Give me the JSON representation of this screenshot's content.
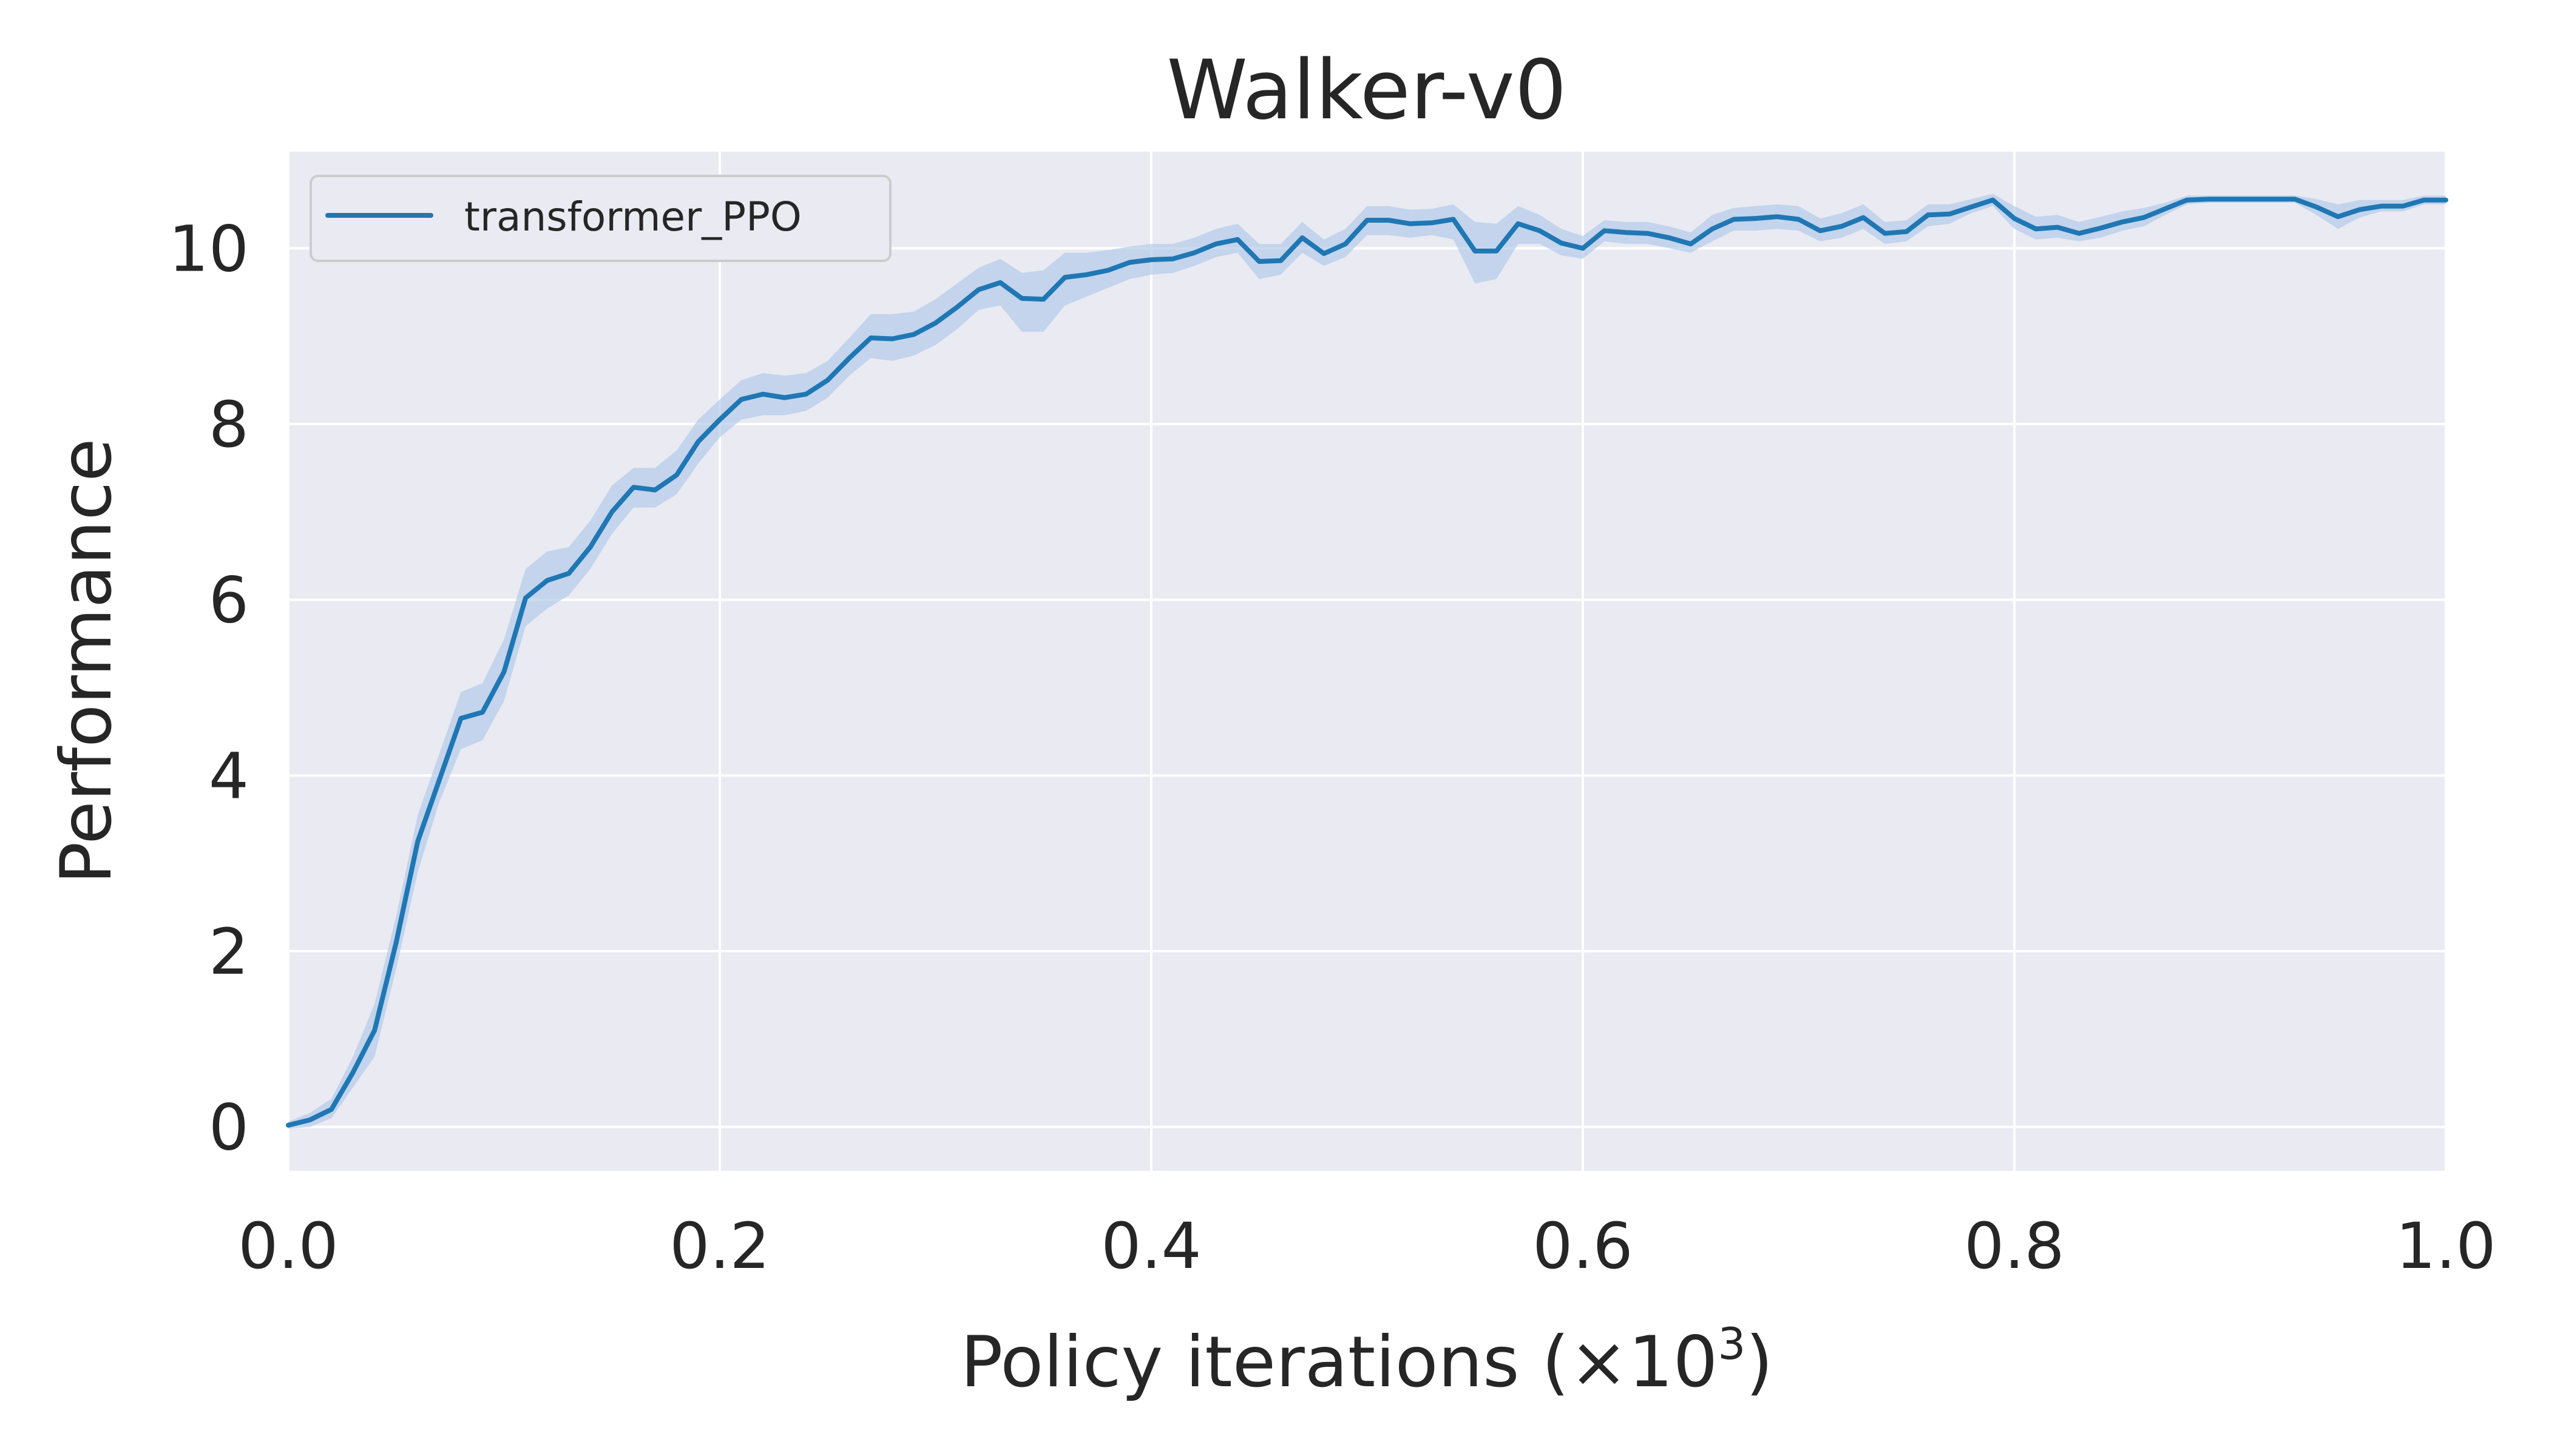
{
  "chart_data": {
    "type": "line",
    "title": "Walker-v0",
    "xlabel": "Policy iterations (×10³)",
    "xlabel_parts": {
      "base": "Policy iterations (×10",
      "sup": "3",
      "end": ")"
    },
    "ylabel": "Performance",
    "xlim": [
      0.0,
      1.0
    ],
    "ylim": [
      -0.5,
      11.1
    ],
    "xticks": [
      0.0,
      0.2,
      0.4,
      0.6,
      0.8,
      1.0
    ],
    "xtick_labels": [
      "0.0",
      "0.2",
      "0.4",
      "0.6",
      "0.8",
      "1.0"
    ],
    "yticks": [
      0,
      2,
      4,
      6,
      8,
      10
    ],
    "ytick_labels": [
      "0",
      "2",
      "4",
      "6",
      "8",
      "10"
    ],
    "grid": true,
    "legend_position": "top-left",
    "colors": {
      "line": "#1f77b4",
      "band": "#aec7e8",
      "plot_bg": "#eaeaf2",
      "grid": "#ffffff"
    },
    "series": [
      {
        "name": "transformer_PPO",
        "x": [
          0.0,
          0.01,
          0.02,
          0.03,
          0.04,
          0.05,
          0.06,
          0.07,
          0.08,
          0.09,
          0.1,
          0.11,
          0.12,
          0.13,
          0.14,
          0.15,
          0.16,
          0.17,
          0.18,
          0.19,
          0.2,
          0.21,
          0.22,
          0.23,
          0.24,
          0.25,
          0.26,
          0.27,
          0.28,
          0.29,
          0.3,
          0.31,
          0.32,
          0.33,
          0.34,
          0.35,
          0.36,
          0.37,
          0.38,
          0.39,
          0.4,
          0.41,
          0.42,
          0.43,
          0.44,
          0.45,
          0.46,
          0.47,
          0.48,
          0.49,
          0.5,
          0.51,
          0.52,
          0.53,
          0.54,
          0.55,
          0.56,
          0.57,
          0.58,
          0.59,
          0.6,
          0.61,
          0.62,
          0.63,
          0.64,
          0.65,
          0.66,
          0.67,
          0.68,
          0.69,
          0.7,
          0.71,
          0.72,
          0.73,
          0.74,
          0.75,
          0.76,
          0.77,
          0.78,
          0.79,
          0.8,
          0.81,
          0.82,
          0.83,
          0.84,
          0.85,
          0.86,
          0.87,
          0.88,
          0.89,
          0.9,
          0.91,
          0.92,
          0.93,
          0.94,
          0.95,
          0.96,
          0.97,
          0.98,
          0.99,
          1.0
        ],
        "mean": [
          0.02,
          0.08,
          0.2,
          0.62,
          1.1,
          2.1,
          3.25,
          3.95,
          4.65,
          4.72,
          5.18,
          6.02,
          6.22,
          6.3,
          6.6,
          7.0,
          7.28,
          7.25,
          7.42,
          7.8,
          8.05,
          8.28,
          8.34,
          8.3,
          8.34,
          8.5,
          8.75,
          8.98,
          8.97,
          9.02,
          9.15,
          9.33,
          9.53,
          9.61,
          9.43,
          9.42,
          9.67,
          9.7,
          9.75,
          9.84,
          9.87,
          9.88,
          9.95,
          10.05,
          10.1,
          9.85,
          9.86,
          10.12,
          9.94,
          10.05,
          10.32,
          10.32,
          10.28,
          10.29,
          10.33,
          9.97,
          9.97,
          10.28,
          10.2,
          10.06,
          10.0,
          10.2,
          10.18,
          10.17,
          10.12,
          10.05,
          10.22,
          10.33,
          10.34,
          10.36,
          10.33,
          10.2,
          10.25,
          10.35,
          10.17,
          10.19,
          10.38,
          10.39,
          10.47,
          10.55,
          10.34,
          10.22,
          10.24,
          10.17,
          10.23,
          10.3,
          10.35,
          10.45,
          10.55,
          10.56,
          10.56,
          10.56,
          10.56,
          10.56,
          10.47,
          10.36,
          10.44,
          10.48,
          10.48,
          10.55,
          10.55
        ],
        "lower": [
          -0.02,
          0.0,
          0.1,
          0.45,
          0.8,
          1.8,
          2.9,
          3.7,
          4.3,
          4.4,
          4.85,
          5.7,
          5.9,
          6.05,
          6.35,
          6.75,
          7.05,
          7.05,
          7.2,
          7.55,
          7.85,
          8.05,
          8.1,
          8.1,
          8.15,
          8.3,
          8.55,
          8.75,
          8.72,
          8.78,
          8.9,
          9.08,
          9.3,
          9.35,
          9.05,
          9.05,
          9.35,
          9.45,
          9.55,
          9.65,
          9.7,
          9.72,
          9.8,
          9.9,
          9.95,
          9.65,
          9.7,
          9.95,
          9.8,
          9.9,
          10.15,
          10.15,
          10.12,
          10.15,
          10.1,
          9.6,
          9.65,
          10.05,
          10.05,
          9.92,
          9.88,
          10.08,
          10.05,
          10.05,
          10.0,
          9.95,
          10.08,
          10.2,
          10.2,
          10.22,
          10.2,
          10.08,
          10.12,
          10.22,
          10.05,
          10.08,
          10.25,
          10.28,
          10.4,
          10.48,
          10.22,
          10.1,
          10.12,
          10.08,
          10.12,
          10.2,
          10.25,
          10.38,
          10.5,
          10.52,
          10.52,
          10.52,
          10.52,
          10.52,
          10.38,
          10.22,
          10.35,
          10.42,
          10.42,
          10.5,
          10.5
        ],
        "upper": [
          0.06,
          0.16,
          0.32,
          0.8,
          1.4,
          2.4,
          3.55,
          4.25,
          4.95,
          5.05,
          5.55,
          6.35,
          6.55,
          6.6,
          6.9,
          7.3,
          7.5,
          7.5,
          7.7,
          8.05,
          8.28,
          8.5,
          8.58,
          8.55,
          8.58,
          8.72,
          8.98,
          9.25,
          9.25,
          9.28,
          9.42,
          9.6,
          9.78,
          9.88,
          9.72,
          9.75,
          9.95,
          9.95,
          9.98,
          10.02,
          10.05,
          10.05,
          10.12,
          10.22,
          10.28,
          10.05,
          10.05,
          10.3,
          10.1,
          10.22,
          10.48,
          10.48,
          10.44,
          10.45,
          10.5,
          10.3,
          10.28,
          10.48,
          10.38,
          10.22,
          10.14,
          10.32,
          10.3,
          10.3,
          10.25,
          10.18,
          10.38,
          10.46,
          10.48,
          10.5,
          10.48,
          10.34,
          10.4,
          10.5,
          10.3,
          10.32,
          10.5,
          10.5,
          10.56,
          10.62,
          10.48,
          10.36,
          10.38,
          10.3,
          10.36,
          10.42,
          10.46,
          10.52,
          10.6,
          10.6,
          10.6,
          10.6,
          10.6,
          10.6,
          10.56,
          10.5,
          10.55,
          10.55,
          10.55,
          10.6,
          10.6
        ]
      }
    ]
  }
}
